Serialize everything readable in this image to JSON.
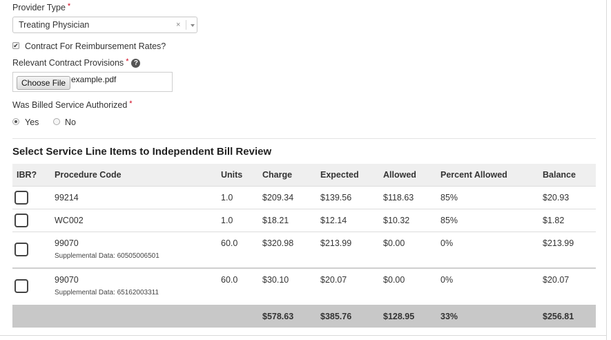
{
  "form": {
    "provider_type": {
      "label": "Provider Type",
      "required": "*",
      "value": "Treating Physician",
      "clear_glyph": "×"
    },
    "contract": {
      "label": "Contract For Reimbursement Rates?",
      "checked": true
    },
    "provisions": {
      "label": "Relevant Contract Provisions",
      "required": "*",
      "help_icon": "?",
      "button": "Choose File",
      "filename": "example.pdf"
    },
    "authorized": {
      "label": "Was Billed Service Authorized",
      "required": "*",
      "options": [
        "Yes",
        "No"
      ],
      "selected": "Yes"
    }
  },
  "table": {
    "title": "Select Service Line Items to Independent Bill Review",
    "headers": {
      "ibr": "IBR?",
      "code": "Procedure Code",
      "units": "Units",
      "charge": "Charge",
      "expected": "Expected",
      "allowed": "Allowed",
      "percent": "Percent Allowed",
      "balance": "Balance"
    },
    "rows": [
      {
        "code": "99214",
        "supp": "",
        "units": "1.0",
        "charge": "$209.34",
        "expected": "$139.56",
        "allowed": "$118.63",
        "percent": "85%",
        "balance": "$20.93"
      },
      {
        "code": "WC002",
        "supp": "",
        "units": "1.0",
        "charge": "$18.21",
        "expected": "$12.14",
        "allowed": "$10.32",
        "percent": "85%",
        "balance": "$1.82"
      },
      {
        "code": "99070",
        "supp": "Supplemental Data: 60505006501",
        "units": "60.0",
        "charge": "$320.98",
        "expected": "$213.99",
        "allowed": "$0.00",
        "percent": "0%",
        "balance": "$213.99"
      },
      {
        "code": "99070",
        "supp": "Supplemental Data: 65162003311",
        "units": "60.0",
        "charge": "$30.10",
        "expected": "$20.07",
        "allowed": "$0.00",
        "percent": "0%",
        "balance": "$20.07"
      }
    ],
    "totals": {
      "charge": "$578.63",
      "expected": "$385.76",
      "allowed": "$128.95",
      "percent": "33%",
      "balance": "$256.81"
    }
  }
}
